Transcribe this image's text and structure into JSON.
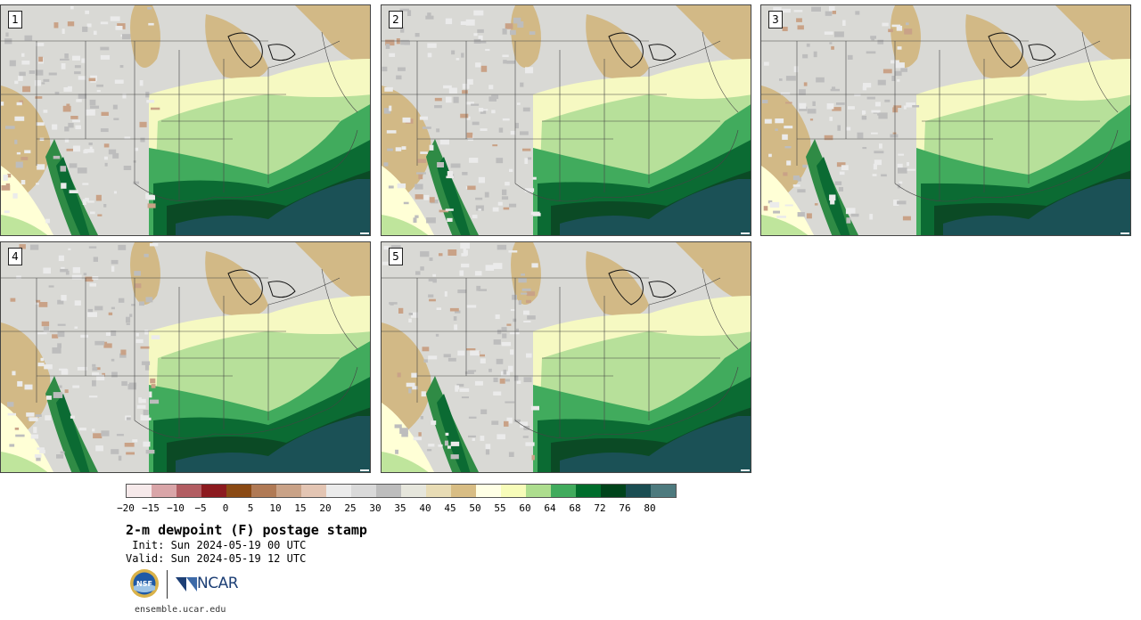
{
  "panels": [
    {
      "label": "1"
    },
    {
      "label": "2"
    },
    {
      "label": "3"
    },
    {
      "label": "4"
    },
    {
      "label": "5"
    }
  ],
  "colorbar": {
    "colors": [
      "#f6e9ea",
      "#d9a5a8",
      "#b25d62",
      "#8c1a1f",
      "#8a4a14",
      "#b07a55",
      "#c9a287",
      "#e3c5b3",
      "#ebebeb",
      "#d9d9d9",
      "#bdbdbd",
      "#e6e6dc",
      "#e8dcb5",
      "#d8bd84",
      "#ffffe5",
      "#f7fcb9",
      "#addd8e",
      "#41ab5d",
      "#006d2c",
      "#00441b",
      "#1a4d52",
      "#4d7a7e"
    ],
    "labels": [
      "−20",
      "−15",
      "−10",
      "−5",
      "0",
      "5",
      "10",
      "15",
      "20",
      "25",
      "30",
      "35",
      "40",
      "45",
      "50",
      "55",
      "60",
      "64",
      "68",
      "72",
      "76",
      "80"
    ]
  },
  "title": "2-m dewpoint (F) postage stamp",
  "init": " Init: Sun 2024-05-19 00 UTC",
  "valid": "Valid: Sun 2024-05-19 12 UTC",
  "logos": {
    "nsf": "NSF",
    "ncar": "NCAR"
  },
  "site": "ensemble.ucar.edu"
}
